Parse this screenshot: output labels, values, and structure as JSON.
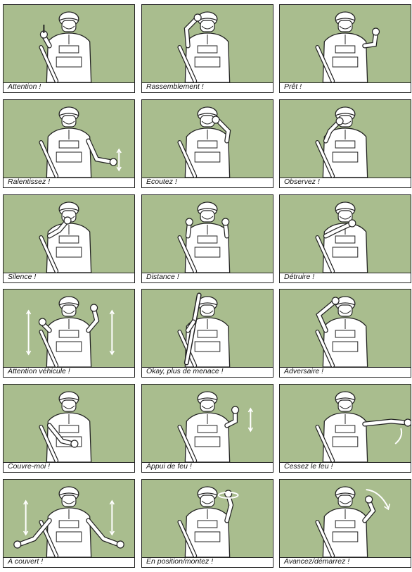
{
  "panels": [
    {
      "caption": "Attention !",
      "figure": "soldier-index-finger-raised-icon"
    },
    {
      "caption": "Rassemblement !",
      "figure": "soldier-hand-on-helmet-icon"
    },
    {
      "caption": "Prêt !",
      "figure": "soldier-fist-raised-icon"
    },
    {
      "caption": "Ralentissez !",
      "figure": "soldier-arm-pointing-down-icon"
    },
    {
      "caption": "Écoutez !",
      "figure": "soldier-hand-to-ear-icon"
    },
    {
      "caption": "Observez !",
      "figure": "soldier-hand-to-eyes-icon"
    },
    {
      "caption": "Silence !",
      "figure": "soldier-finger-on-lips-icon"
    },
    {
      "caption": "Distance !",
      "figure": "soldier-two-hands-raised-icon"
    },
    {
      "caption": "Détruire !",
      "figure": "soldier-hand-across-throat-icon"
    },
    {
      "caption": "Attention véhicule !",
      "figure": "soldier-fists-pumping-icon"
    },
    {
      "caption": "Okay, plus de menace !",
      "figure": "soldier-rifle-raised-icon"
    },
    {
      "caption": "Adversaire !",
      "figure": "soldier-thumb-down-over-head-icon"
    },
    {
      "caption": "Couvre-moi !",
      "figure": "soldier-hand-on-rifle-icon"
    },
    {
      "caption": "Appui de feu !",
      "figure": "soldier-fist-up-down-icon"
    },
    {
      "caption": "Cessez le feu !",
      "figure": "soldier-arm-waving-horizontal-icon"
    },
    {
      "caption": "À couvert !",
      "figure": "soldier-arms-spread-down-icon"
    },
    {
      "caption": "En position/montez !",
      "figure": "soldier-fist-circling-icon"
    },
    {
      "caption": "Avancez/démarrez !",
      "figure": "soldier-arm-swinging-forward-icon"
    }
  ],
  "colors": {
    "background": "#a9bd8e",
    "line": "#222222",
    "fill": "#ffffff"
  }
}
